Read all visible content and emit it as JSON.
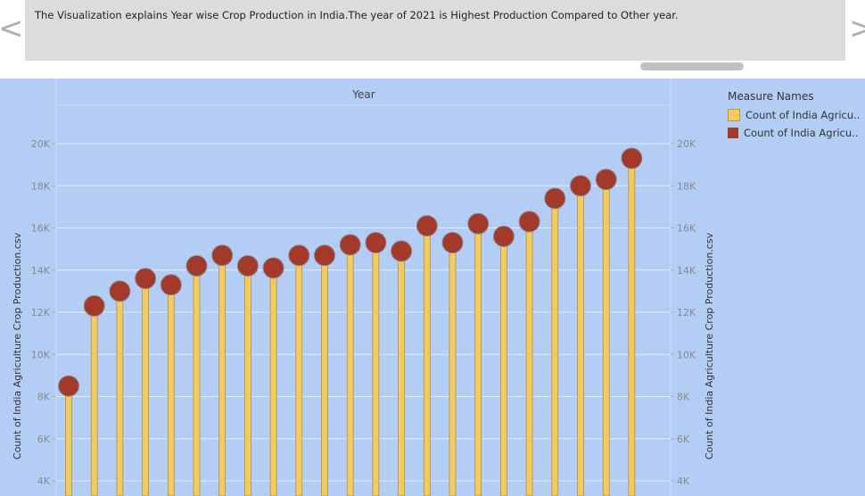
{
  "caption": {
    "text": "The Visualization explains Year wise Crop Production in India.The year of  2021 is Highest Production Compared to Other year."
  },
  "nav": {
    "left_arrow": "<",
    "right_arrow": ">"
  },
  "legend": {
    "title": "Measure Names",
    "items": [
      {
        "label": "Count of India Agricu..",
        "color": "#f2ca5e"
      },
      {
        "label": "Count of India Agricu..",
        "color": "#a3392a"
      }
    ]
  },
  "colors": {
    "background": "#b4cdf5",
    "bar": "#f2ca5e",
    "circle": "#a3392a"
  },
  "chart_data": {
    "type": "bar",
    "title": "",
    "header": "Year",
    "ylabel": "Count of India Agriculture Crop Production.csv",
    "ylabel_right": "Count of India Agriculture Crop Production.csv",
    "ylim": [
      3500,
      22000
    ],
    "y_ticks": [
      4000,
      6000,
      8000,
      10000,
      12000,
      14000,
      16000,
      18000,
      20000
    ],
    "y_tick_labels": [
      "4K",
      "6K",
      "8K",
      "10K",
      "12K",
      "14K",
      "16K",
      "18K",
      "20K"
    ],
    "series": [
      {
        "name": "Count of India Agricu..",
        "values": [
          8500,
          12300,
          13000,
          13600,
          13300,
          14200,
          14700,
          14200,
          14100,
          14700,
          14700,
          15200,
          15300,
          14900,
          16100,
          15300,
          16200,
          15600,
          16300,
          17400,
          18000,
          18300,
          19300
        ]
      }
    ],
    "grid": true,
    "legend_position": "right"
  }
}
